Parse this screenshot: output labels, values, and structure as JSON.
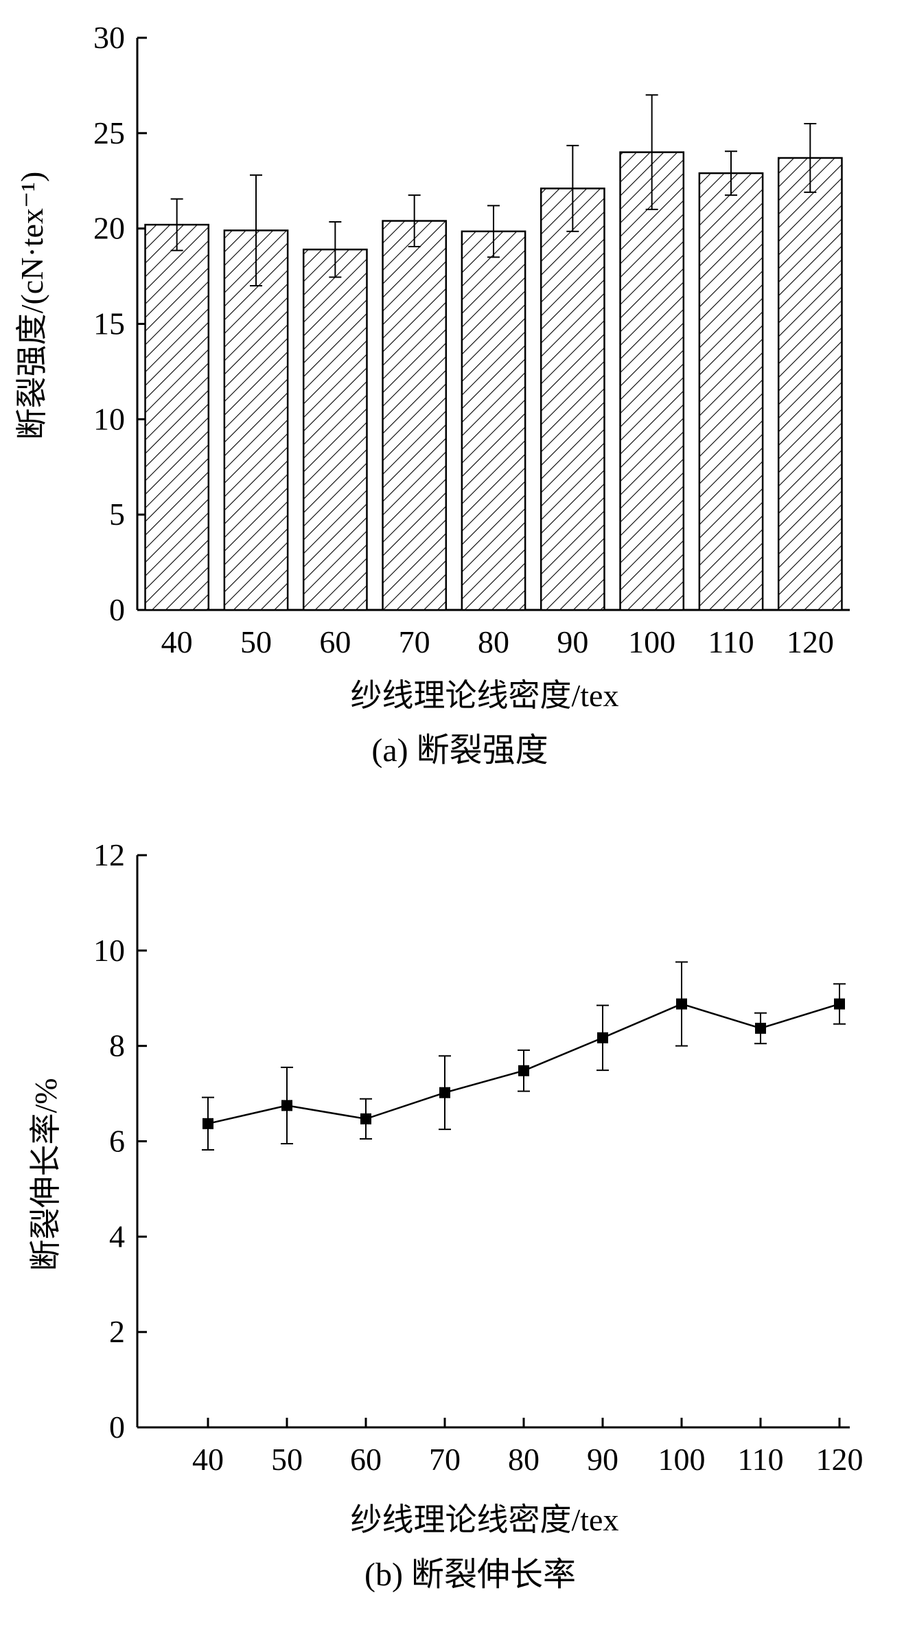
{
  "chart_data": [
    {
      "type": "bar",
      "categories": [
        "40",
        "50",
        "60",
        "70",
        "80",
        "90",
        "100",
        "110",
        "120"
      ],
      "values": [
        20.2,
        19.9,
        18.9,
        20.4,
        19.85,
        22.1,
        24.0,
        22.9,
        23.7
      ],
      "error": [
        1.35,
        2.9,
        1.45,
        1.35,
        1.35,
        2.25,
        3.0,
        1.15,
        1.8
      ],
      "xlabel": "纱线理论线密度/tex",
      "ylabel": "断裂强度/(cN·tex⁻¹)",
      "ylim": [
        0,
        30
      ],
      "yticks": [
        0,
        5,
        10,
        15,
        20,
        25,
        30
      ],
      "caption": "(a) 断裂强度",
      "fill": "diagonal-hatch",
      "grid": false
    },
    {
      "type": "line",
      "x": [
        40,
        50,
        60,
        70,
        80,
        90,
        100,
        110,
        120
      ],
      "x_labels": [
        "40",
        "50",
        "60",
        "70",
        "80",
        "90",
        "100",
        "110",
        "120"
      ],
      "values": [
        6.37,
        6.75,
        6.47,
        7.02,
        7.48,
        8.17,
        8.88,
        8.37,
        8.88
      ],
      "error": [
        0.55,
        0.8,
        0.42,
        0.77,
        0.43,
        0.68,
        0.88,
        0.32,
        0.42
      ],
      "xlabel": "纱线理论线密度/tex",
      "ylabel": "断裂伸长率/%",
      "ylim": [
        0,
        12
      ],
      "yticks": [
        0,
        2,
        4,
        6,
        8,
        10,
        12
      ],
      "caption": "(b) 断裂伸长率",
      "marker": "filled-square",
      "grid": false
    }
  ]
}
